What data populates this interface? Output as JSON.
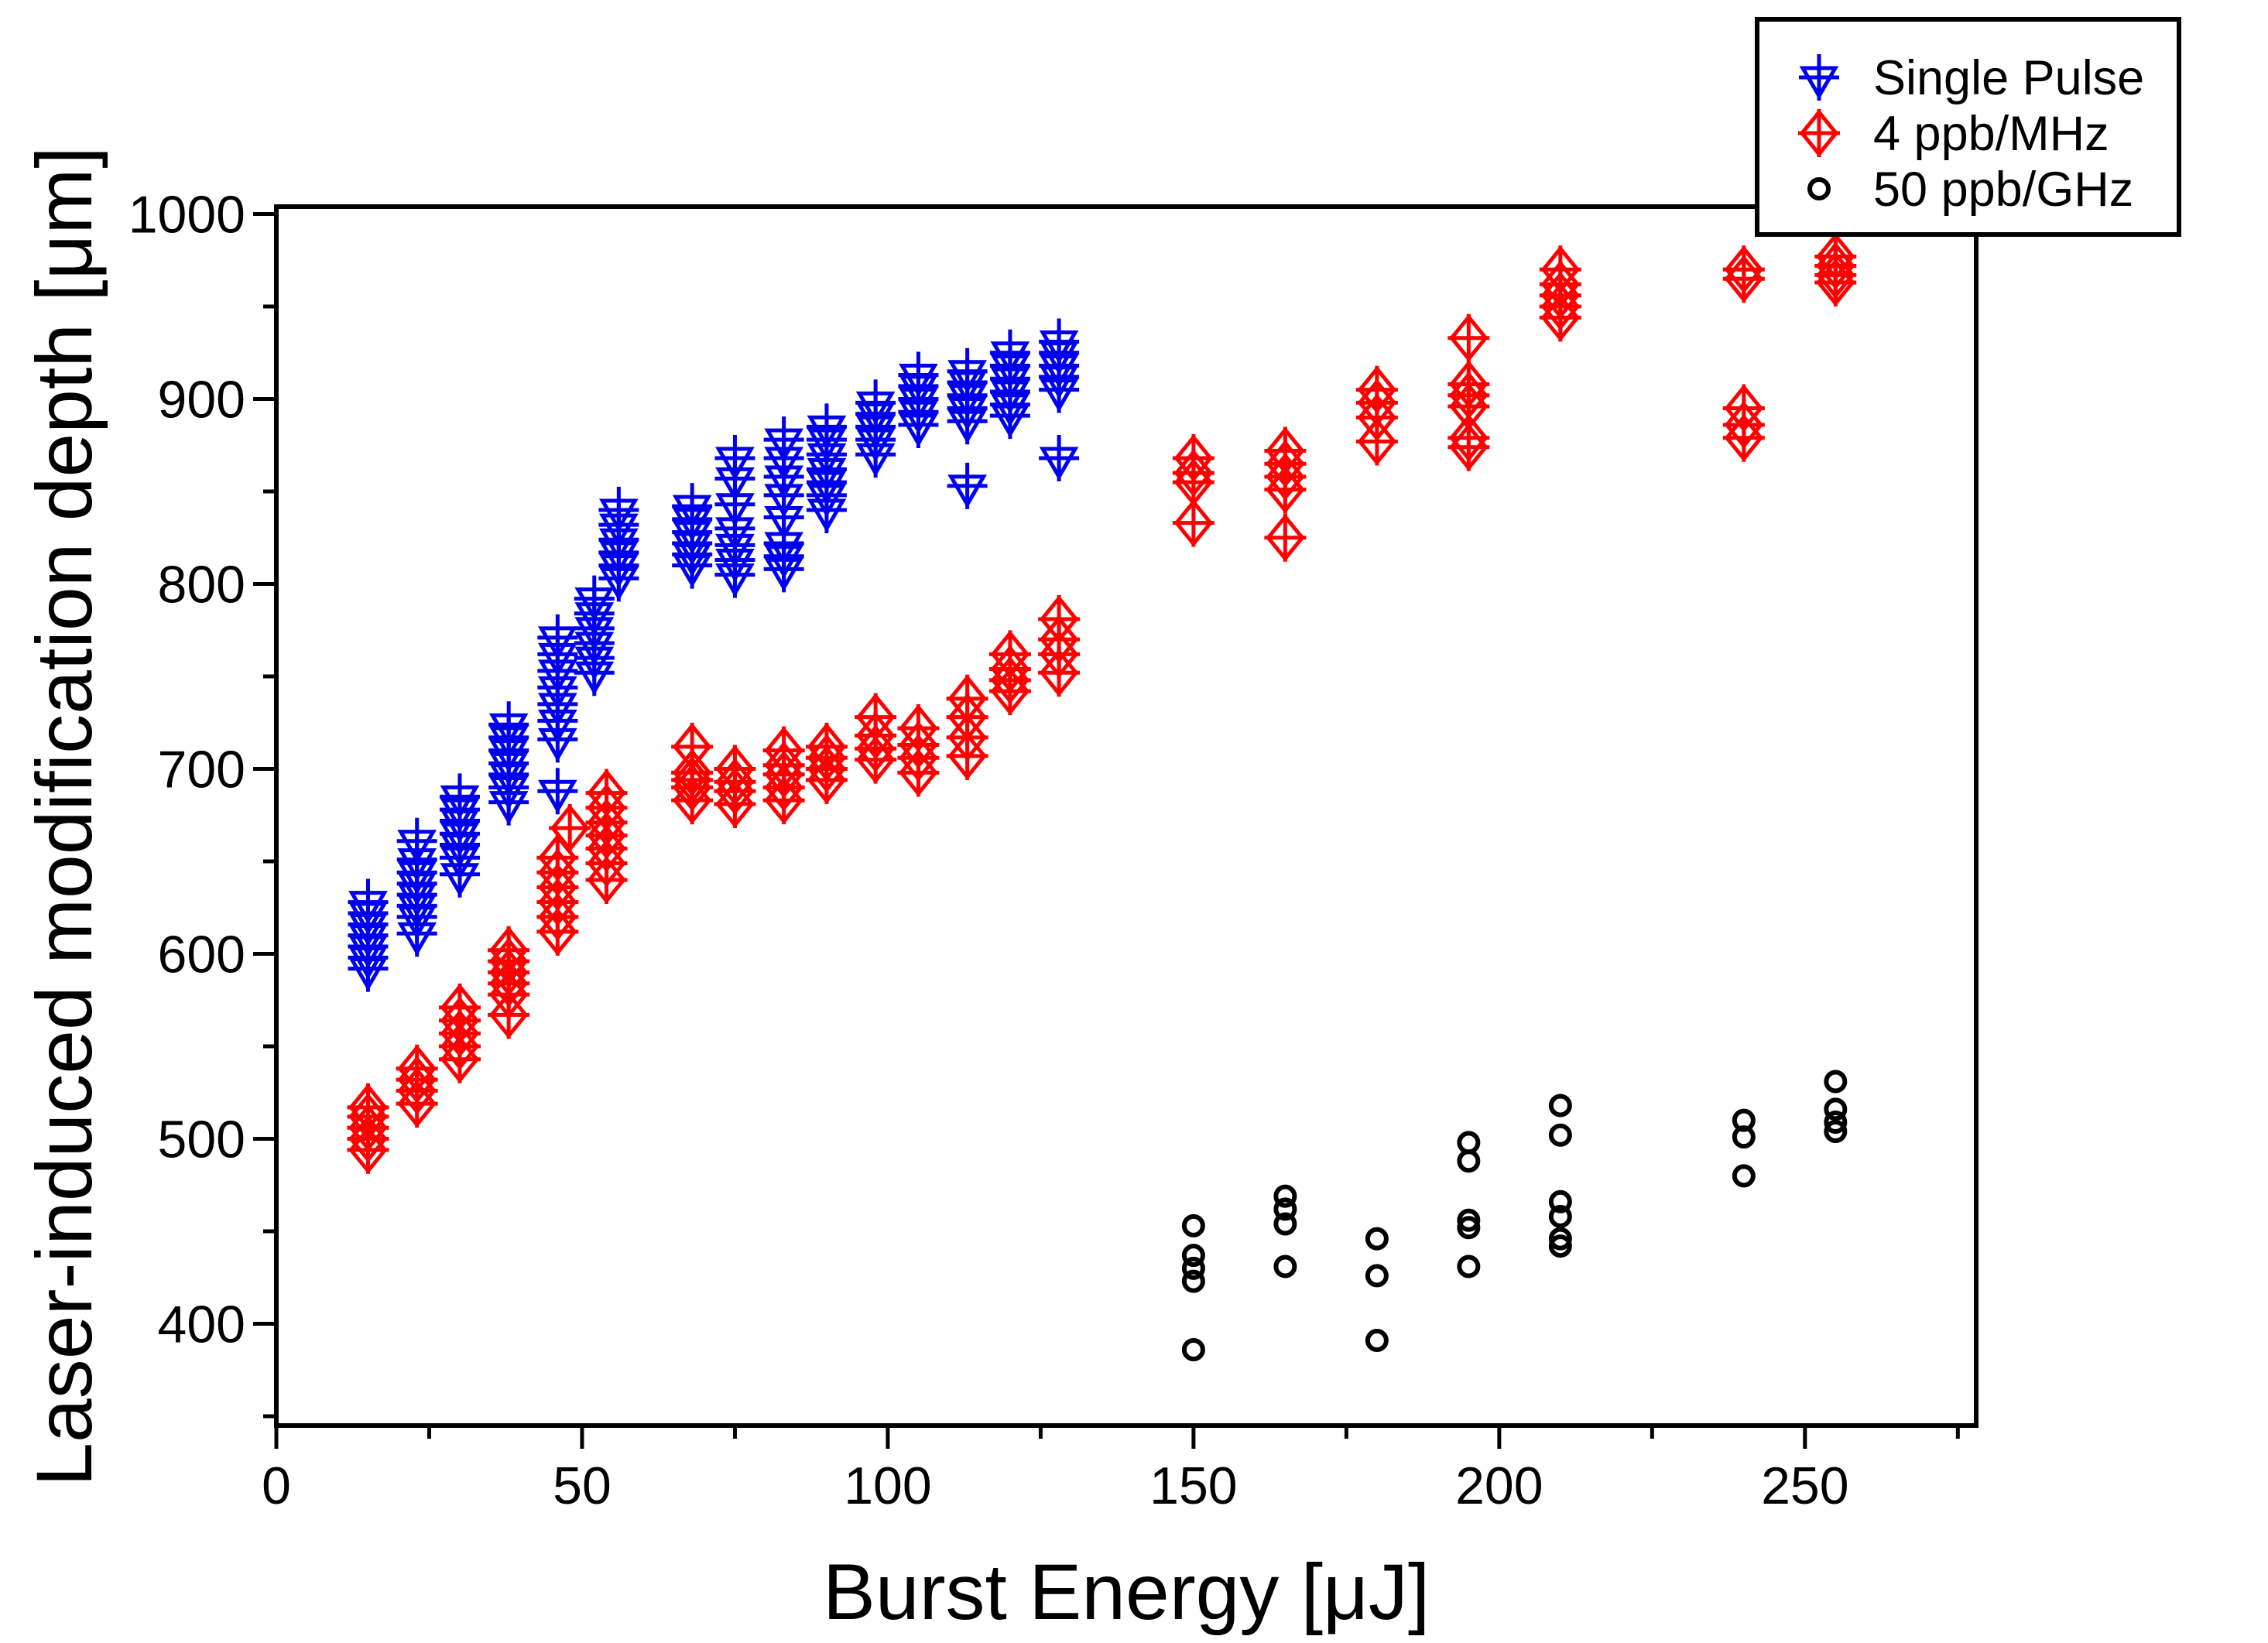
{
  "chart_data": {
    "type": "scatter",
    "title": "",
    "xlabel": "Burst Energy [μJ]",
    "ylabel": "Laser-induced modification depth [μm]",
    "xlim": [
      0,
      278
    ],
    "ylim": [
      345,
      1004
    ],
    "x_major_ticks": [
      0,
      50,
      100,
      150,
      200,
      250
    ],
    "x_minor_ticks": [
      25,
      75,
      125,
      175,
      225,
      275
    ],
    "y_major_ticks": [
      400,
      500,
      600,
      700,
      800,
      900,
      1000
    ],
    "y_minor_ticks": [
      350,
      450,
      550,
      650,
      750,
      850,
      950
    ],
    "grid": false,
    "legend_position": "top-right",
    "axis_color": "#000000",
    "series": [
      {
        "name": "Single Pulse",
        "color": "#0000ee",
        "marker": "triangle-down-plus",
        "clusters": [
          {
            "x": 15,
            "y": [
              592,
              598,
              604,
              610,
              616,
              622,
              628
            ]
          },
          {
            "x": 23,
            "y": [
              611,
              620,
              626,
              632,
              638,
              644,
              651,
              661
            ]
          },
          {
            "x": 30,
            "y": [
              643,
              652,
              659,
              665,
              672,
              678,
              685
            ]
          },
          {
            "x": 38,
            "y": [
              682,
              690,
              697,
              703,
              710,
              717,
              724
            ]
          },
          {
            "x": 46,
            "y": [
              688,
              716,
              726,
              735,
              744,
              753,
              762,
              771
            ]
          },
          {
            "x": 52,
            "y": [
              752,
              760,
              768,
              776,
              784,
              792
            ]
          },
          {
            "x": 56,
            "y": [
              803,
              810,
              817,
              824,
              832,
              840
            ]
          },
          {
            "x": 68,
            "y": [
              810,
              816,
              822,
              828,
              835,
              842
            ]
          },
          {
            "x": 75,
            "y": [
              805,
              813,
              821,
              830,
              843,
              857,
              868
            ]
          },
          {
            "x": 83,
            "y": [
              808,
              815,
              822,
              836,
              848,
              858,
              868,
              878
            ]
          },
          {
            "x": 90,
            "y": [
              840,
              848,
              855,
              862,
              870,
              878,
              885
            ]
          },
          {
            "x": 98,
            "y": [
              870,
              878,
              885,
              892,
              898
            ]
          },
          {
            "x": 105,
            "y": [
              886,
              893,
              900,
              907,
              913
            ]
          },
          {
            "x": 113,
            "y": [
              853,
              888,
              895,
              902,
              909,
              915
            ]
          },
          {
            "x": 120,
            "y": [
              891,
              897,
              904,
              911,
              918,
              925
            ]
          },
          {
            "x": 128,
            "y": [
              868,
              905,
              912,
              918,
              925,
              931
            ]
          }
        ]
      },
      {
        "name": "4 ppb/MHz",
        "color": "#ff0000",
        "marker": "diamond-plus",
        "clusters": [
          {
            "x": 15,
            "y": [
              494,
              500,
              506,
              512,
              517
            ]
          },
          {
            "x": 23,
            "y": [
              519,
              526,
              532,
              538
            ]
          },
          {
            "x": 30,
            "y": [
              543,
              550,
              557,
              564,
              571
            ]
          },
          {
            "x": 38,
            "y": [
              567,
              578,
              584,
              590,
              596,
              602
            ]
          },
          {
            "x": 46,
            "y": [
              612,
              620,
              628,
              636,
              644,
              652
            ]
          },
          {
            "x": 48,
            "y": [
              668
            ]
          },
          {
            "x": 54,
            "y": [
              640,
              649,
              657,
              664,
              671,
              679,
              687
            ]
          },
          {
            "x": 68,
            "y": [
              683,
              690,
              694,
              698,
              712
            ]
          },
          {
            "x": 75,
            "y": [
              681,
              688,
              693,
              700
            ]
          },
          {
            "x": 83,
            "y": [
              683,
              690,
              697,
              702,
              710
            ]
          },
          {
            "x": 90,
            "y": [
              694,
              700,
              706,
              712
            ]
          },
          {
            "x": 98,
            "y": [
              705,
              711,
              718,
              728
            ]
          },
          {
            "x": 105,
            "y": [
              698,
              706,
              713,
              722
            ]
          },
          {
            "x": 113,
            "y": [
              707,
              717,
              728,
              738
            ]
          },
          {
            "x": 120,
            "y": [
              742,
              748,
              754,
              762
            ]
          },
          {
            "x": 128,
            "y": [
              752,
              762,
              770,
              781
            ]
          },
          {
            "x": 150,
            "y": [
              833,
              855,
              860,
              868
            ]
          },
          {
            "x": 165,
            "y": [
              825,
              851,
              858,
              865,
              872
            ]
          },
          {
            "x": 180,
            "y": [
              877,
              890,
              898,
              905
            ]
          },
          {
            "x": 195,
            "y": [
              874,
              879,
              896,
              902,
              908,
              933
            ]
          },
          {
            "x": 210,
            "y": [
              944,
              950,
              956,
              962,
              970
            ]
          },
          {
            "x": 240,
            "y": [
              879,
              886,
              895,
              965,
              970
            ]
          },
          {
            "x": 255,
            "y": [
              963,
              967,
              972,
              977
            ]
          }
        ]
      },
      {
        "name": "50 ppb/GHz",
        "color": "#000000",
        "marker": "circle",
        "clusters": [
          {
            "x": 150,
            "y": [
              386,
              423,
              430,
              437,
              453
            ]
          },
          {
            "x": 165,
            "y": [
              431,
              454,
              462,
              469
            ]
          },
          {
            "x": 180,
            "y": [
              391,
              426,
              446
            ]
          },
          {
            "x": 195,
            "y": [
              431,
              452,
              456,
              488,
              498
            ]
          },
          {
            "x": 210,
            "y": [
              442,
              446,
              458,
              466,
              502,
              518
            ]
          },
          {
            "x": 240,
            "y": [
              480,
              501,
              510
            ]
          },
          {
            "x": 255,
            "y": [
              504,
              509,
              516,
              531
            ]
          }
        ]
      }
    ]
  }
}
